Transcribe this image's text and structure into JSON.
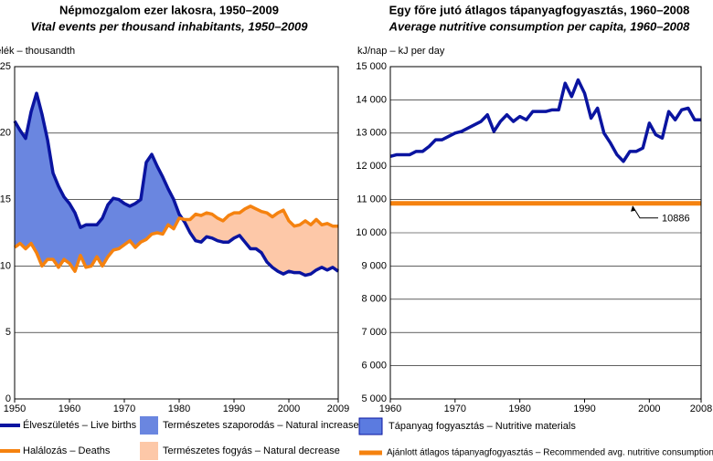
{
  "chart_data": [
    {
      "type": "line",
      "title": "Népmozgalom ezer lakosra, 1950–2009",
      "subtitle": "Vital events per thousand inhabitants, 1950–2009",
      "y_label": "ezrelék – thousandth",
      "x": [
        1950,
        1951,
        1952,
        1953,
        1954,
        1955,
        1956,
        1957,
        1958,
        1959,
        1960,
        1961,
        1962,
        1963,
        1964,
        1965,
        1966,
        1967,
        1968,
        1969,
        1970,
        1971,
        1972,
        1973,
        1974,
        1975,
        1976,
        1977,
        1978,
        1979,
        1980,
        1981,
        1982,
        1983,
        1984,
        1985,
        1986,
        1987,
        1988,
        1989,
        1990,
        1991,
        1992,
        1993,
        1994,
        1995,
        1996,
        1997,
        1998,
        1999,
        2000,
        2001,
        2002,
        2003,
        2004,
        2005,
        2006,
        2007,
        2008,
        2009
      ],
      "series": [
        {
          "name": "Élveszületés – Live births",
          "color": "#0a14a0",
          "values": [
            20.9,
            20.2,
            19.6,
            21.6,
            23.0,
            21.4,
            19.5,
            17.0,
            16.0,
            15.2,
            14.7,
            14.0,
            12.9,
            13.1,
            13.1,
            13.1,
            13.6,
            14.6,
            15.1,
            15.0,
            14.7,
            14.5,
            14.7,
            15.0,
            17.8,
            18.4,
            17.5,
            16.7,
            15.8,
            15.0,
            13.9,
            13.3,
            12.5,
            11.9,
            11.8,
            12.2,
            12.1,
            11.9,
            11.8,
            11.8,
            12.1,
            12.3,
            11.8,
            11.3,
            11.3,
            11.0,
            10.3,
            9.9,
            9.6,
            9.4,
            9.6,
            9.5,
            9.5,
            9.3,
            9.4,
            9.7,
            9.9,
            9.7,
            9.9,
            9.6
          ]
        },
        {
          "name": "Halálozás – Deaths",
          "color": "#f5820f",
          "values": [
            11.4,
            11.7,
            11.3,
            11.7,
            11.0,
            10.0,
            10.5,
            10.5,
            9.9,
            10.5,
            10.2,
            9.6,
            10.8,
            9.9,
            10.0,
            10.7,
            10.0,
            10.7,
            11.2,
            11.3,
            11.6,
            11.9,
            11.4,
            11.8,
            12.0,
            12.4,
            12.5,
            12.4,
            13.1,
            12.8,
            13.6,
            13.5,
            13.5,
            13.9,
            13.8,
            14.0,
            13.9,
            13.6,
            13.4,
            13.8,
            14.0,
            14.0,
            14.3,
            14.5,
            14.3,
            14.1,
            14.0,
            13.7,
            14.0,
            14.2,
            13.4,
            13.0,
            13.1,
            13.4,
            13.1,
            13.5,
            13.1,
            13.2,
            13.0,
            13.0
          ]
        }
      ],
      "fills": [
        {
          "name": "Természetes szaporodás – Natural  increase",
          "color": "#6a86e0"
        },
        {
          "name": "Természetes fogyás – Natural decrease",
          "color": "#fdc8a8"
        }
      ],
      "xlim": [
        1950,
        2009
      ],
      "xticks": [
        1950,
        1960,
        1970,
        1980,
        1990,
        2000,
        2009
      ],
      "ylim": [
        0,
        25
      ],
      "yticks": [
        0,
        5,
        10,
        15,
        20,
        25
      ],
      "grid": true
    },
    {
      "type": "line",
      "title": "Egy főre jutó átlagos tápanyagfogyasztás, 1960–2008",
      "subtitle": "Average nutritive consumption per capita, 1960–2008",
      "y_label": "kJ/nap – kJ per day",
      "x": [
        1960,
        1961,
        1962,
        1963,
        1964,
        1965,
        1966,
        1967,
        1968,
        1969,
        1970,
        1971,
        1972,
        1973,
        1974,
        1975,
        1976,
        1977,
        1978,
        1979,
        1980,
        1981,
        1982,
        1983,
        1984,
        1985,
        1986,
        1987,
        1988,
        1989,
        1990,
        1991,
        1992,
        1993,
        1994,
        1995,
        1996,
        1997,
        1998,
        1999,
        2000,
        2001,
        2002,
        2003,
        2004,
        2005,
        2006,
        2007,
        2008
      ],
      "series": [
        {
          "name": "Tápanyag fogyasztás – Nutritive materials",
          "color": "#0a14a0",
          "values": [
            12300,
            12350,
            12350,
            12350,
            12450,
            12450,
            12600,
            12800,
            12800,
            12900,
            13000,
            13050,
            13150,
            13250,
            13350,
            13550,
            13050,
            13350,
            13550,
            13350,
            13500,
            13400,
            13650,
            13650,
            13650,
            13700,
            13700,
            14500,
            14100,
            14600,
            14200,
            13450,
            13750,
            13000,
            12700,
            12350,
            12150,
            12450,
            12450,
            12550,
            13300,
            12950,
            12850,
            13650,
            13400,
            13700,
            13750,
            13400,
            13400
          ]
        }
      ],
      "reference": {
        "name": "Ajánlott átlagos tápanyagfogyasztás – Recommended avg. nutritive consumption",
        "color": "#f5820f",
        "value": 10886
      },
      "xlim": [
        1960,
        2008
      ],
      "xticks": [
        1960,
        1970,
        1980,
        1990,
        2000,
        2008
      ],
      "ylim": [
        5000,
        15000
      ],
      "yticks": [
        {
          "value": 5000,
          "label": "5 000"
        },
        {
          "value": 6000,
          "label": "6 000"
        },
        {
          "value": 7000,
          "label": "7 000"
        },
        {
          "value": 8000,
          "label": "8 000"
        },
        {
          "value": 9000,
          "label": "9 000"
        },
        {
          "value": 10000,
          "label": "10 000"
        },
        {
          "value": 11000,
          "label": "11 000"
        },
        {
          "value": 12000,
          "label": "12 000"
        },
        {
          "value": 13000,
          "label": "13 000"
        },
        {
          "value": 14000,
          "label": "14 000"
        },
        {
          "value": 15000,
          "label": "15 000"
        }
      ],
      "grid": true
    }
  ]
}
